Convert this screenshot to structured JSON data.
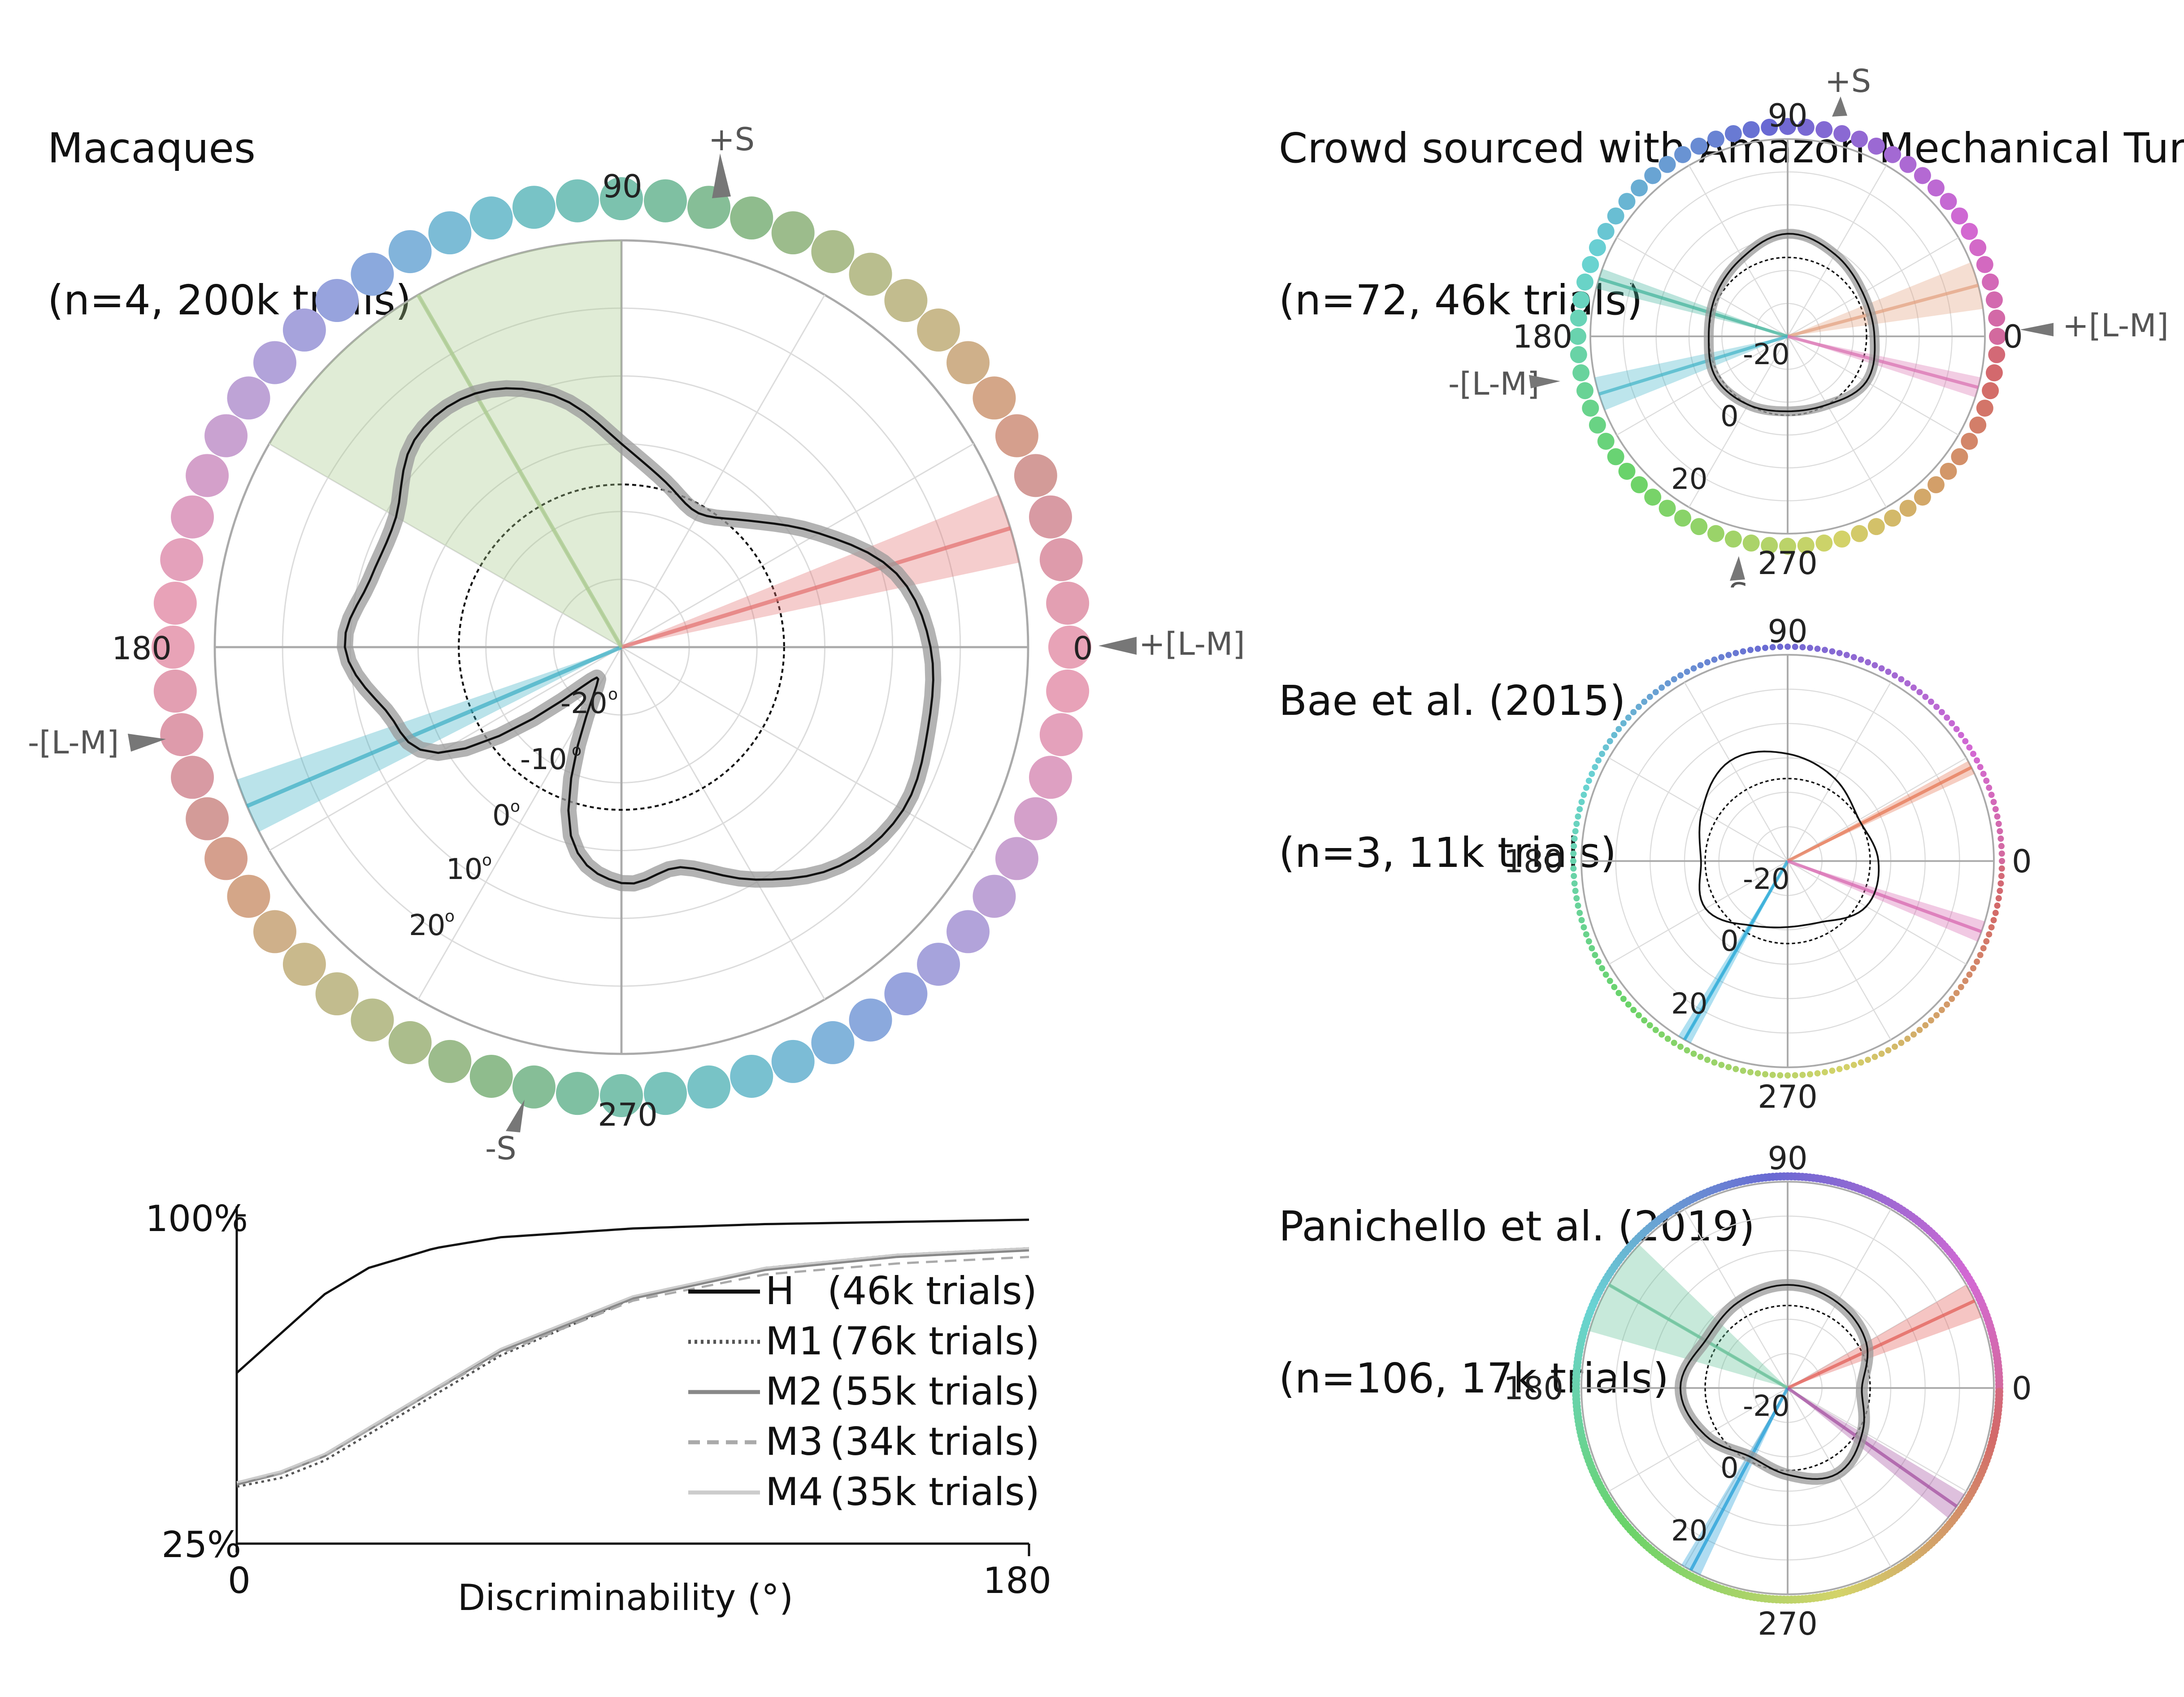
{
  "panels": {
    "macaques": {
      "title_line1": "Macaques",
      "title_line2": "(n=4, 200k trials)",
      "dot_colors": [
        "#e8a3b7",
        "#e39fb2",
        "#de9bab",
        "#d89aa3",
        "#d39b98",
        "#d59f8d",
        "#d4a688",
        "#cfb08a",
        "#c9b98c",
        "#c2bc8e",
        "#b9be8e",
        "#abbd8c",
        "#9cbc8c",
        "#8fbc8d",
        "#86be97",
        "#7fc0a2",
        "#7cc2ae",
        "#79c3bb",
        "#78c3c6",
        "#79c1d0",
        "#7cbcd6",
        "#82b4db",
        "#8ba9dd",
        "#97a3dd",
        "#a6a3dc",
        "#b2a3da",
        "#bea3d6",
        "#c9a2d1",
        "#d4a0ca",
        "#dea0c2",
        "#e4a1bb",
        "#e8a2b8"
      ]
    },
    "mturk": {
      "title_line1": "Crowd sourced with Amazon Mechanical Turk",
      "title_line2": "(n=72, 46k trials)"
    },
    "bae": {
      "title_line1": "Bae et al. (2015)",
      "title_line2": "(n=3, 11k trials)"
    },
    "panichello": {
      "title_line1": "Panichello et al. (2019)",
      "title_line2": "(n=106, 17k trials)"
    }
  },
  "polar_labels": {
    "angle_90": "90",
    "angle_180": "180",
    "angle_270": "270",
    "angle_0": "0",
    "cone_plus_lm": "+[L-M]",
    "cone_minus_lm": "-[L-M]",
    "cone_plus_s": "+S",
    "cone_minus_s": "-S",
    "r_neg20": "-20",
    "r_neg10": "-10",
    "r_0": "0",
    "r_10": "10",
    "r_20": "20",
    "degree_mark": "o"
  },
  "chart_data": [
    {
      "type": "polar",
      "panel": "Macaques (n=4, 200k trials)",
      "angle_ticks": [
        0,
        90,
        180,
        270
      ],
      "radial_ticks": [
        -20,
        -10,
        0,
        10,
        20
      ],
      "radial_unit": "°",
      "rlim": [
        -20,
        30
      ],
      "reference_circle_r": 0,
      "series": [
        {
          "name": "bias contour",
          "angles": [
            0,
            15,
            30,
            45,
            60,
            75,
            90,
            105,
            120,
            135,
            150,
            165,
            180,
            195,
            210,
            225,
            240,
            255,
            270,
            285,
            300,
            315,
            330,
            345
          ],
          "radius": [
            18,
            15,
            8,
            2,
            -1,
            1,
            5,
            12,
            16,
            16,
            12,
            12,
            14,
            10,
            6,
            -13,
            -13,
            4,
            9,
            8,
            13,
            18,
            20,
            19
          ]
        }
      ],
      "wedges": [
        {
          "angle": 17,
          "half_width": 5,
          "color": "#e3706f"
        },
        {
          "angle": 203,
          "half_width": 4,
          "color": "#3aaec4"
        },
        {
          "angle": 120,
          "half_width": 30,
          "color": "#a7c98a"
        }
      ]
    },
    {
      "type": "line",
      "xlabel": "Discriminability (°)",
      "ylabel": "",
      "xlim": [
        0,
        180
      ],
      "ylim": [
        25,
        100
      ],
      "x_tick_labels": [
        "0",
        "180"
      ],
      "y_tick_labels": [
        "25%",
        "100%"
      ],
      "series": [
        {
          "name": "H",
          "count": "(46k trials)",
          "color": "#111111",
          "dash": "",
          "x": [
            0,
            10,
            20,
            30,
            45,
            60,
            90,
            120,
            150,
            180
          ],
          "y": [
            64,
            73,
            82,
            88,
            92.5,
            95,
            97,
            98,
            98.5,
            99
          ]
        },
        {
          "name": "M1",
          "count": "(76k trials)",
          "color": "#555555",
          "dash": "dot",
          "x": [
            0,
            10,
            20,
            30,
            45,
            60,
            90,
            120,
            150,
            180
          ],
          "y": [
            38,
            40,
            44,
            50,
            59,
            68,
            81,
            88,
            91,
            92.5
          ]
        },
        {
          "name": "M2",
          "count": "(55k trials)",
          "color": "#888888",
          "dash": "",
          "x": [
            0,
            10,
            20,
            30,
            45,
            60,
            90,
            120,
            150,
            180
          ],
          "y": [
            38.5,
            41,
            45,
            51,
            60,
            69,
            81,
            87.5,
            90.5,
            92
          ]
        },
        {
          "name": "M3",
          "count": "(34k trials)",
          "color": "#aaaaaa",
          "dash": "dash",
          "x": [
            0,
            10,
            20,
            30,
            45,
            60,
            90,
            120,
            150,
            180
          ],
          "y": [
            39,
            41,
            45,
            51,
            60,
            68.5,
            80.5,
            86.5,
            89,
            90.5
          ]
        },
        {
          "name": "M4",
          "count": "(35k trials)",
          "color": "#cccccc",
          "dash": "",
          "x": [
            0,
            10,
            20,
            30,
            45,
            60,
            90,
            120,
            150,
            180
          ],
          "y": [
            39,
            41.5,
            45.5,
            51.5,
            60.5,
            69.5,
            81.5,
            88,
            91,
            92.5
          ]
        }
      ]
    },
    {
      "type": "polar",
      "panel": "Crowd sourced with Amazon Mechanical Turk (n=72, 46k trials)",
      "angle_ticks": [
        0,
        90,
        180,
        270
      ],
      "series": [
        {
          "name": "bias contour",
          "angles": [
            0,
            30,
            60,
            90,
            120,
            150,
            180,
            210,
            240,
            270,
            300,
            330
          ],
          "radius": [
            2,
            2,
            4,
            6,
            3,
            1,
            0,
            1,
            0,
            -1,
            0,
            3
          ]
        }
      ],
      "wedges": [
        {
          "angle": 15,
          "half_width": 7,
          "color": "#e3a07f"
        },
        {
          "angle": 163,
          "half_width": 3,
          "color": "#3fb39a"
        },
        {
          "angle": 197,
          "half_width": 5,
          "color": "#41b4c8"
        },
        {
          "angle": 345,
          "half_width": 3,
          "color": "#d96fb0"
        }
      ]
    },
    {
      "type": "polar",
      "panel": "Bae et al. (2015) (n=3, 11k trials)",
      "angle_ticks": [
        0,
        90,
        180,
        270
      ],
      "series": [
        {
          "name": "bias contour",
          "angles": [
            0,
            30,
            60,
            90,
            120,
            150,
            180,
            210,
            240,
            270,
            300,
            330
          ],
          "radius": [
            2,
            0,
            3,
            6,
            8,
            4,
            1,
            3,
            -2,
            -4,
            -3,
            2
          ]
        }
      ],
      "wedges": [
        {
          "angle": 27,
          "half_width": 2,
          "color": "#e5734f"
        },
        {
          "angle": 240,
          "half_width": 2,
          "color": "#1aa6d8"
        },
        {
          "angle": 340,
          "half_width": 3,
          "color": "#d764ae"
        }
      ]
    },
    {
      "type": "polar",
      "panel": "Panichello et al. (2019) (n=106, 17k trials)",
      "angle_ticks": [
        0,
        90,
        180,
        270
      ],
      "series": [
        {
          "name": "bias contour",
          "angles": [
            0,
            30,
            60,
            90,
            120,
            150,
            180,
            210,
            240,
            270,
            300,
            330
          ],
          "radius": [
            -2,
            2,
            4,
            5,
            4,
            3,
            6,
            3,
            -1,
            1,
            4,
            1
          ]
        }
      ],
      "wedges": [
        {
          "angle": 25,
          "half_width": 5,
          "color": "#e25a52"
        },
        {
          "angle": 150,
          "half_width": 14,
          "color": "#5fbf94"
        },
        {
          "angle": 242,
          "half_width": 3,
          "color": "#1a9bd6"
        },
        {
          "angle": 325,
          "half_width": 4,
          "color": "#a14a9e"
        }
      ]
    }
  ]
}
